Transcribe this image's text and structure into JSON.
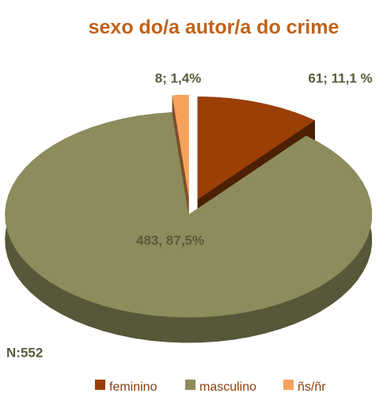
{
  "chart_data": {
    "type": "pie",
    "title": "sexo do/a autor/a do crime",
    "categories": [
      "feminino",
      "masculino",
      "ñs/ñr"
    ],
    "values": [
      61,
      483,
      8
    ],
    "value_labels": [
      "61; 11,1 %",
      "483, 87,5%",
      "8; 1,4%"
    ],
    "colors": [
      "#9a3f06",
      "#8c8c5c",
      "#f7a25a"
    ],
    "annotation": "N:552"
  }
}
